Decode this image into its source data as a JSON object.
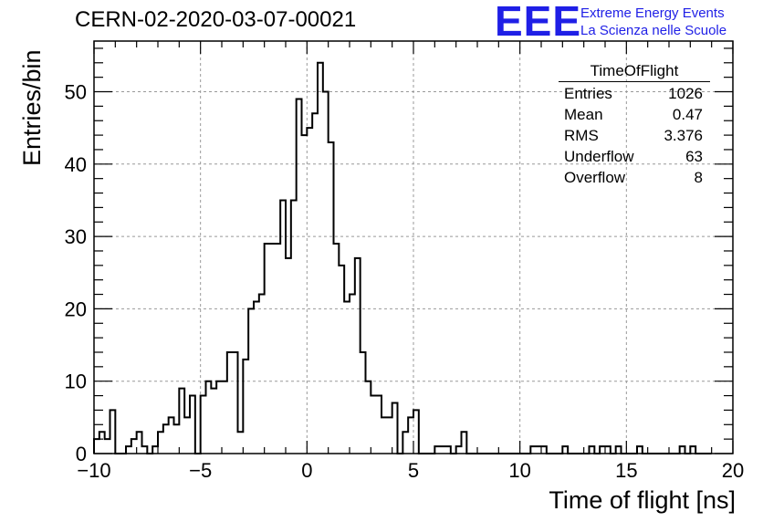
{
  "chart_data": {
    "type": "histogram",
    "title": "CERN-02-2020-03-07-00021",
    "xlabel": "Time of flight [ns]",
    "ylabel": "Entries/bin",
    "xlim": [
      -10,
      20
    ],
    "ylim": [
      0,
      57
    ],
    "grid": true,
    "x_ticks": [
      "−10",
      "−5",
      "0",
      "5",
      "10",
      "15",
      "20"
    ],
    "y_ticks": [
      "0",
      "10",
      "20",
      "30",
      "40",
      "50"
    ],
    "bin_start": -10,
    "bin_width": 0.25,
    "values": [
      2,
      3,
      2,
      6,
      0,
      0,
      1,
      2,
      3,
      1,
      0,
      1,
      3,
      4,
      5,
      4,
      9,
      5,
      8,
      0,
      8,
      10,
      9,
      10,
      10,
      14,
      14,
      3,
      13,
      20,
      21,
      22,
      29,
      29,
      29,
      35,
      27,
      35,
      49,
      44,
      45,
      47,
      54,
      50,
      43,
      29,
      26,
      21,
      22,
      27,
      14,
      10,
      8,
      8,
      5,
      5,
      7,
      0,
      3,
      5,
      6,
      0,
      0,
      0,
      1,
      1,
      1,
      0,
      1,
      3,
      0,
      0,
      0,
      0,
      0,
      0,
      0,
      0,
      0,
      0,
      0,
      0,
      1,
      1,
      1,
      0,
      0,
      0,
      1,
      0,
      0,
      0,
      0,
      1,
      0,
      1,
      1,
      0,
      1,
      0,
      0,
      0,
      1,
      0,
      0,
      0,
      0,
      0,
      0,
      0,
      1,
      0,
      1,
      0,
      0,
      0
    ],
    "stats_box": {
      "title": "TimeOfFlight",
      "rows": [
        {
          "label": "Entries",
          "value": "1026"
        },
        {
          "label": "Mean",
          "value": "0.47"
        },
        {
          "label": "RMS",
          "value": "3.376"
        },
        {
          "label": "Underflow",
          "value": "63"
        },
        {
          "label": "Overflow",
          "value": "8"
        }
      ]
    }
  },
  "logo": {
    "mark": "EEE",
    "line1": "Extreme Energy Events",
    "line2": "La Scienza nelle Scuole",
    "color": "#1f1fe6"
  }
}
